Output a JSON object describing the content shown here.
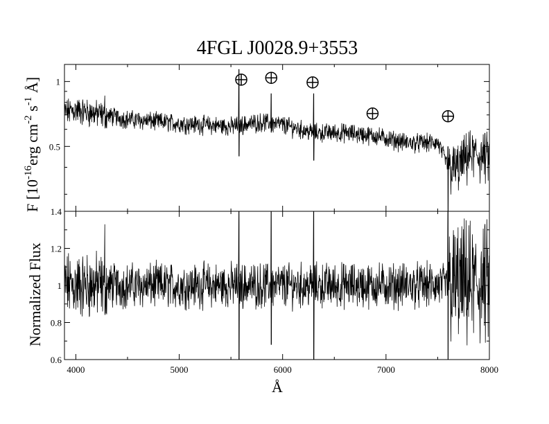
{
  "title": "4FGL J0028.9+3553",
  "chart_data": [
    {
      "type": "line",
      "panel": "top",
      "ylabel_parts": {
        "main": "F [10",
        "exp1": "-16",
        "mid": "erg cm",
        "exp2": "-2",
        "s": " s",
        "exp3": "-1",
        "unit": " Å]"
      },
      "xlim": [
        3890,
        8000
      ],
      "ylim": [
        0.25,
        1.2
      ],
      "yscale": "log",
      "yticks": [
        0.5,
        1
      ],
      "ytick_labels": [
        "0.5",
        "1"
      ],
      "telluric_markers": [
        {
          "x": 5600,
          "y": 1.02
        },
        {
          "x": 5890,
          "y": 1.04
        },
        {
          "x": 6290,
          "y": 0.99
        },
        {
          "x": 6870,
          "y": 0.71
        },
        {
          "x": 7600,
          "y": 0.69
        }
      ],
      "features": [
        {
          "x": 5577,
          "top": 1.14,
          "bottom": 0.45
        },
        {
          "x": 5890,
          "top": 0.88,
          "bottom": 0.58
        },
        {
          "x": 6300,
          "top": 0.88,
          "bottom": 0.43
        },
        {
          "x": 4280,
          "top": 0.86,
          "bottom": 0.64
        },
        {
          "x": 7600,
          "top": 0.5,
          "bottom": 0.25
        }
      ],
      "continuum": [
        [
          3890,
          0.72
        ],
        [
          4000,
          0.74
        ],
        [
          4200,
          0.71
        ],
        [
          4500,
          0.67
        ],
        [
          5000,
          0.64
        ],
        [
          5500,
          0.62
        ],
        [
          5800,
          0.65
        ],
        [
          6000,
          0.63
        ],
        [
          6300,
          0.58
        ],
        [
          6600,
          0.58
        ],
        [
          6900,
          0.56
        ],
        [
          7200,
          0.52
        ],
        [
          7500,
          0.52
        ],
        [
          7600,
          0.4
        ],
        [
          7700,
          0.4
        ],
        [
          7800,
          0.46
        ],
        [
          8000,
          0.45
        ]
      ]
    },
    {
      "type": "line",
      "panel": "bottom",
      "ylabel": "Normalized Flux",
      "xlabel": "Å",
      "xlim": [
        3890,
        8000
      ],
      "ylim": [
        0.6,
        1.4
      ],
      "yticks": [
        0.6,
        0.8,
        1,
        1.2,
        1.4
      ],
      "ytick_labels": [
        "0.6",
        "0.8",
        "1",
        "1.2",
        "1.4"
      ],
      "xticks": [
        4000,
        5000,
        6000,
        7000,
        8000
      ],
      "xtick_labels": [
        "4000",
        "5000",
        "6000",
        "7000",
        "8000"
      ],
      "features": [
        {
          "x": 5577,
          "top": 1.4,
          "bottom": 0.6
        },
        {
          "x": 5890,
          "top": 1.4,
          "bottom": 0.68
        },
        {
          "x": 6300,
          "top": 1.4,
          "bottom": 0.6
        },
        {
          "x": 4280,
          "top": 1.33,
          "bottom": 0.85
        },
        {
          "x": 7600,
          "top": 1.4,
          "bottom": 0.6
        }
      ]
    }
  ]
}
